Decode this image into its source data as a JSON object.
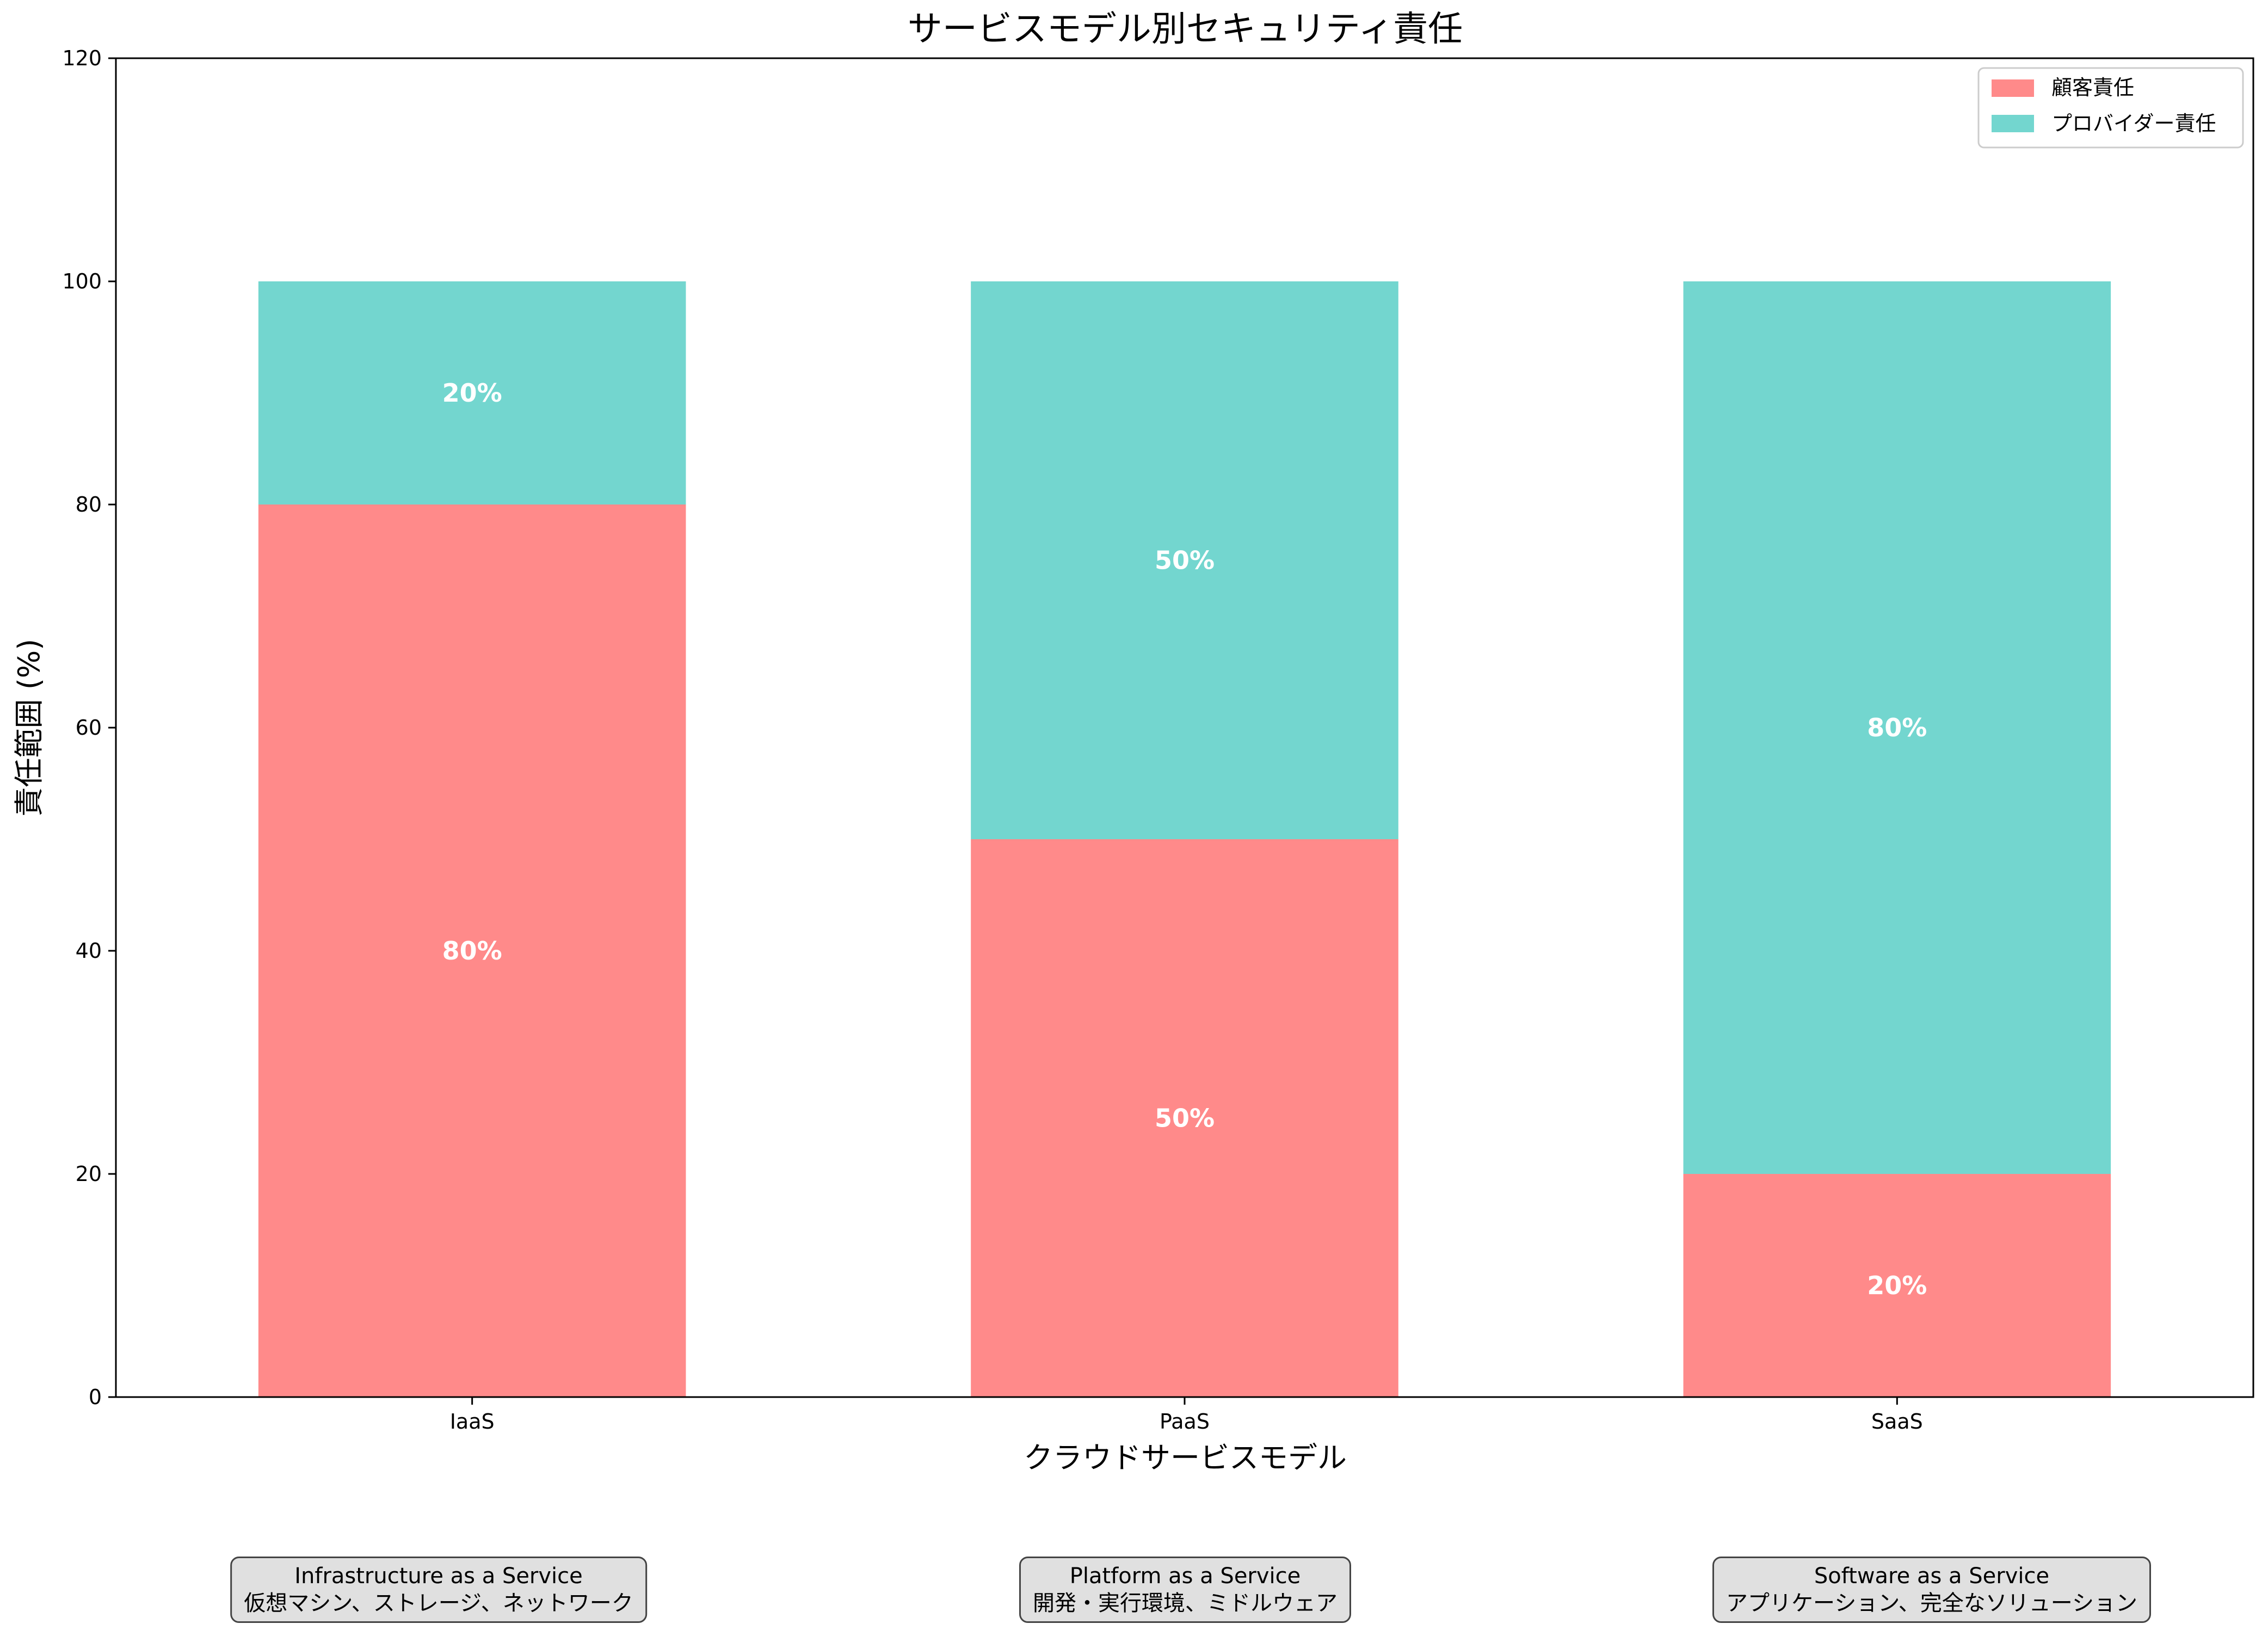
{
  "chart_data": {
    "type": "bar",
    "stacked": true,
    "title": "サービスモデル別セキュリティ責任",
    "xlabel": "クラウドサービスモデル",
    "ylabel": "責任範囲 (%)",
    "ylim": [
      0,
      120
    ],
    "yticks": [
      0,
      20,
      40,
      60,
      80,
      100,
      120
    ],
    "categories": [
      "IaaS",
      "PaaS",
      "SaaS"
    ],
    "series": [
      {
        "name": "顧客責任",
        "color": "#ff8a8a",
        "values": [
          80,
          50,
          20
        ],
        "labels": [
          "80%",
          "50%",
          "20%"
        ]
      },
      {
        "name": "プロバイダー責任",
        "color": "#73d6cf",
        "values": [
          20,
          50,
          80
        ],
        "labels": [
          "20%",
          "50%",
          "80%"
        ]
      }
    ],
    "legend": "top-right",
    "grid": false
  },
  "descriptions": [
    {
      "title": "Infrastructure as a Service",
      "detail": "仮想マシン、ストレージ、ネットワーク"
    },
    {
      "title": "Platform as a Service",
      "detail": "開発・実行環境、ミドルウェア"
    },
    {
      "title": "Software as a Service",
      "detail": "アプリケーション、完全なソリューション"
    }
  ]
}
